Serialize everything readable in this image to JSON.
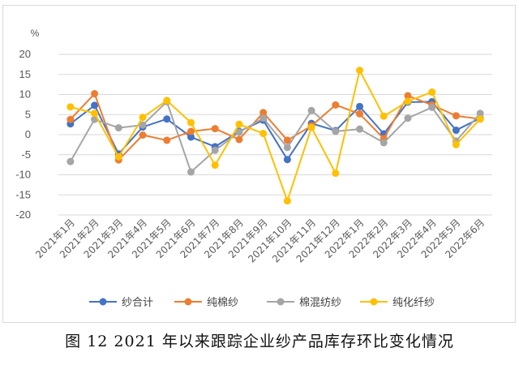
{
  "chart_data": {
    "type": "line",
    "unit_label": "%",
    "ylim": [
      -20,
      20
    ],
    "y_ticks": [
      20,
      15,
      10,
      5,
      0,
      -5,
      -10,
      -15,
      -20
    ],
    "grid": true,
    "legend_position": "bottom",
    "categories": [
      "2021年1月",
      "2021年2月",
      "2021年3月",
      "2021年4月",
      "2021年5月",
      "2021年6月",
      "2021年7月",
      "2021年8月",
      "2021年9月",
      "2021年10月",
      "2021年11月",
      "2021年12月",
      "2022年1月",
      "2022年2月",
      "2022年3月",
      "2022年4月",
      "2022年5月",
      "2022年6月"
    ],
    "series": [
      {
        "name": "纱合计",
        "color": "#4472c4",
        "values": [
          2.7,
          7.3,
          -4.8,
          1.9,
          3.9,
          -0.6,
          -3.0,
          0.8,
          3.6,
          -6.2,
          2.8,
          1.0,
          7.0,
          0.2,
          8.1,
          8.2,
          1.1,
          4.1
        ]
      },
      {
        "name": "纯棉纱",
        "color": "#ed7d31",
        "values": [
          3.8,
          10.2,
          -6.3,
          -0.1,
          -1.4,
          0.8,
          1.5,
          -1.2,
          5.5,
          -1.4,
          2.2,
          7.4,
          5.2,
          -1.0,
          9.7,
          7.4,
          4.7,
          3.9
        ]
      },
      {
        "name": "棉混纺纱",
        "color": "#a5a5a5",
        "values": [
          -6.7,
          3.8,
          1.7,
          2.4,
          8.2,
          -9.3,
          -3.9,
          0.6,
          4.1,
          -3.2,
          6.0,
          0.8,
          1.4,
          -2.0,
          4.1,
          6.8,
          -1.6,
          5.3
        ]
      },
      {
        "name": "纯化纤纱",
        "color": "#ffc000",
        "values": [
          6.9,
          5.3,
          -5.5,
          4.3,
          8.5,
          3.0,
          -7.6,
          2.6,
          0.3,
          -16.5,
          1.8,
          -9.6,
          16.0,
          4.6,
          8.3,
          10.6,
          -2.5,
          3.9
        ]
      }
    ]
  },
  "caption": "图 12   2021 年以来跟踪企业纱产品库存环比变化情况"
}
